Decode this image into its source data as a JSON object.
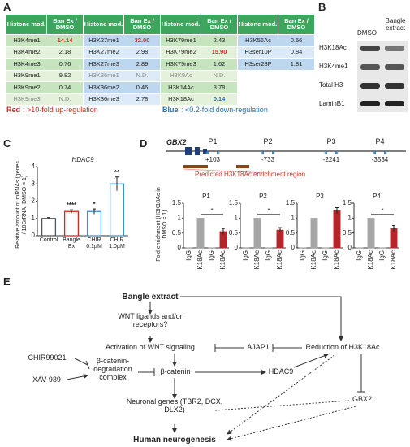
{
  "panels": {
    "a": "A",
    "b": "B",
    "c": "C",
    "d": "D",
    "e": "E"
  },
  "table": {
    "header": [
      "Histone mod.",
      "Ban Ex / DMSO"
    ],
    "groups": [
      [
        {
          "mod": "H3K4me1",
          "value": "14.14",
          "mark": "up"
        },
        {
          "mod": "H3K4me2",
          "value": "2.18"
        },
        {
          "mod": "H3K4me3",
          "value": "0.76"
        },
        {
          "mod": "H3K9me1",
          "value": "9.82"
        },
        {
          "mod": "H3K9me2",
          "value": "0.74"
        },
        {
          "mod": "H3K9me3",
          "value": "N.D.",
          "mark": "nd"
        }
      ],
      [
        {
          "mod": "H3K27me1",
          "value": "32.00",
          "mark": "up"
        },
        {
          "mod": "H3K27me2",
          "value": "2.98"
        },
        {
          "mod": "H3K27me3",
          "value": "2.89"
        },
        {
          "mod": "H3K36me1",
          "value": "N.D.",
          "mark": "nd"
        },
        {
          "mod": "H3K36me2",
          "value": "0.46"
        },
        {
          "mod": "H3K36me3",
          "value": "2.78"
        }
      ],
      [
        {
          "mod": "H3K79me1",
          "value": "2.43"
        },
        {
          "mod": "H3K79me2",
          "value": "15.90",
          "mark": "up"
        },
        {
          "mod": "H3K79me3",
          "value": "1.62"
        },
        {
          "mod": "H3K9Ac",
          "value": "N.D.",
          "mark": "nd"
        },
        {
          "mod": "H3K14Ac",
          "value": "3.78"
        },
        {
          "mod": "H3K18Ac",
          "value": "0.14",
          "mark": "down"
        }
      ],
      [
        {
          "mod": "H3K56Ac",
          "value": "0.56"
        },
        {
          "mod": "H3ser10P",
          "value": "0.84"
        },
        {
          "mod": "H3ser28P",
          "value": "1.81"
        }
      ]
    ]
  },
  "legend": {
    "red_key": "Red",
    "red_text": ": >10-fold up-regulation",
    "blue_key": "Blue",
    "blue_text": ": <0.2-fold down-regulation"
  },
  "blot": {
    "columns": [
      "DMSO",
      "Bangle extract"
    ],
    "rows": [
      "H3K18Ac",
      "H3K4me1",
      "Total H3",
      "LaminB1"
    ]
  },
  "chart_data": [
    {
      "type": "bar",
      "title": "HDAC9",
      "y_label": "Relative amount of mRNAs (genes / 18SrRNA, DMSO = 1)",
      "categories": [
        "Control",
        "Bangle Ex",
        "CHIR 0.1µM",
        "CHIR 1.0µM"
      ],
      "values": [
        1.0,
        1.4,
        1.4,
        3.0
      ],
      "errors": [
        0.05,
        0.1,
        0.15,
        0.4
      ],
      "significance": [
        null,
        "****",
        "*",
        "**"
      ],
      "colors": [
        "#555555",
        "#d9261c",
        "#3b8fd8",
        "#3b8fd8"
      ],
      "ylim": [
        0,
        4
      ],
      "yticks": [
        0,
        1,
        2,
        3,
        4
      ]
    },
    {
      "type": "bar",
      "title": "P1",
      "y_label": "Fold enrichment (H3K18Ac in DMSO = 1)",
      "categories": [
        "IgG",
        "K18Ac",
        "IgG",
        "K18Ac"
      ],
      "values": [
        0.01,
        1.0,
        0.01,
        0.55
      ],
      "errors": [
        0,
        0,
        0,
        0.1
      ],
      "significance": "*",
      "colors": [
        "#a6a6a6",
        "#a6a6a6",
        "#a6a6a6",
        "#b5262a"
      ],
      "ylim": [
        0,
        1.5
      ],
      "yticks": [
        0,
        0.5,
        1,
        1.5
      ]
    },
    {
      "type": "bar",
      "title": "P2",
      "categories": [
        "IgG",
        "K18Ac",
        "IgG",
        "K18Ac"
      ],
      "values": [
        0.01,
        1.0,
        0.01,
        0.6
      ],
      "errors": [
        0,
        0,
        0,
        0.08
      ],
      "significance": "*",
      "colors": [
        "#a6a6a6",
        "#a6a6a6",
        "#a6a6a6",
        "#b5262a"
      ],
      "ylim": [
        0,
        1.5
      ],
      "yticks": [
        0,
        0.5,
        1,
        1.5
      ]
    },
    {
      "type": "bar",
      "title": "P3",
      "categories": [
        "IgG",
        "K18Ac",
        "IgG",
        "K18Ac"
      ],
      "values": [
        0.01,
        1.0,
        0.01,
        1.25
      ],
      "errors": [
        0,
        0,
        0,
        0.1
      ],
      "colors": [
        "#a6a6a6",
        "#a6a6a6",
        "#a6a6a6",
        "#b5262a"
      ],
      "ylim": [
        0,
        1.5
      ],
      "yticks": [
        0,
        0.5,
        1,
        1.5
      ]
    },
    {
      "type": "bar",
      "title": "P4",
      "categories": [
        "IgG",
        "K18Ac",
        "IgG",
        "K18Ac"
      ],
      "values": [
        0.01,
        1.0,
        0.01,
        0.65
      ],
      "errors": [
        0,
        0,
        0,
        0.1
      ],
      "significance": "*",
      "colors": [
        "#a6a6a6",
        "#a6a6a6",
        "#a6a6a6",
        "#b5262a"
      ],
      "ylim": [
        0,
        1.5
      ],
      "yticks": [
        0,
        0.5,
        1,
        1.5
      ]
    }
  ],
  "gene": {
    "name": "GBX2",
    "primers": [
      {
        "name": "P1",
        "position": "+103"
      },
      {
        "name": "P2",
        "position": "-733"
      },
      {
        "name": "P3",
        "position": "-2241"
      },
      {
        "name": "P4",
        "position": "-3534"
      }
    ],
    "region": "Predicted H3K18Ac enrichment region"
  },
  "diagram": {
    "nodes": [
      "Bangle extract",
      "WNT ligands and/or receptors?",
      "Activation of WNT signaling",
      "AJAP1",
      "Reduction of H3K18Ac",
      "CHIR99021",
      "XAV-939",
      "β-catenin-degradation complex",
      "β-catenin",
      "HDAC9",
      "GBX2",
      "Neuronal genes (TBR2, DCX, DLX2)",
      "Human neurogenesis"
    ]
  }
}
